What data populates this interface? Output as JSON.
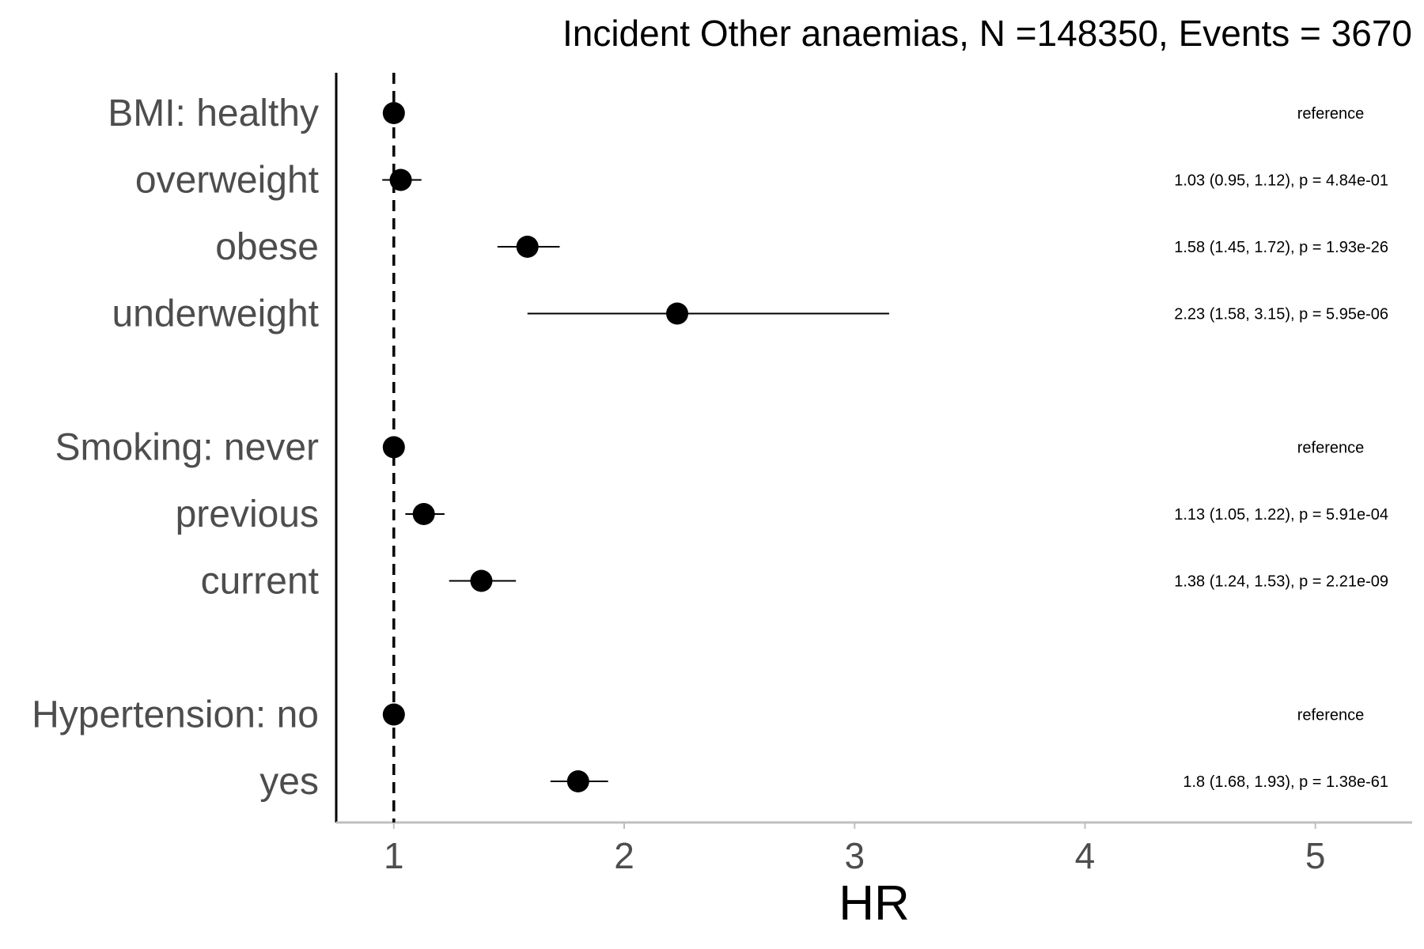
{
  "chart_data": {
    "type": "scatter",
    "subtype": "forest-plot",
    "title": "Incident Other anaemias, N =148350, Events = 3670",
    "xlabel": "HR",
    "ylabel": "",
    "xlim": [
      0.75,
      5.42
    ],
    "x_ticks": [
      1,
      2,
      3,
      4,
      5
    ],
    "x_tick_labels": [
      "1",
      "2",
      "3",
      "4",
      "5"
    ],
    "reference_line": 1,
    "grid": false,
    "rows": [
      {
        "label": "BMI: healthy",
        "hr": 1.0,
        "lo": null,
        "hi": null,
        "annotation": "reference"
      },
      {
        "label": "overweight",
        "hr": 1.03,
        "lo": 0.95,
        "hi": 1.12,
        "annotation": "1.03 (0.95, 1.12), p = 4.84e-01"
      },
      {
        "label": "obese",
        "hr": 1.58,
        "lo": 1.45,
        "hi": 1.72,
        "annotation": "1.58 (1.45, 1.72), p = 1.93e-26"
      },
      {
        "label": "underweight",
        "hr": 2.23,
        "lo": 1.58,
        "hi": 3.15,
        "annotation": "2.23 (1.58, 3.15), p = 5.95e-06"
      },
      {
        "label": "Smoking: never",
        "hr": 1.0,
        "lo": null,
        "hi": null,
        "annotation": "reference",
        "gap_before": true
      },
      {
        "label": "previous",
        "hr": 1.13,
        "lo": 1.05,
        "hi": 1.22,
        "annotation": "1.13 (1.05, 1.22), p = 5.91e-04"
      },
      {
        "label": "current",
        "hr": 1.38,
        "lo": 1.24,
        "hi": 1.53,
        "annotation": "1.38 (1.24, 1.53), p = 2.21e-09"
      },
      {
        "label": "Hypertension: no",
        "hr": 1.0,
        "lo": null,
        "hi": null,
        "annotation": "reference",
        "gap_before": true
      },
      {
        "label": "yes",
        "hr": 1.8,
        "lo": 1.68,
        "hi": 1.93,
        "annotation": "1.8 (1.68, 1.93), p = 1.38e-61"
      }
    ],
    "colors": {
      "point": "#000000",
      "axis_y": "#000000",
      "axis_x": "#bfbfbf",
      "label": "#4d4d4d"
    }
  }
}
